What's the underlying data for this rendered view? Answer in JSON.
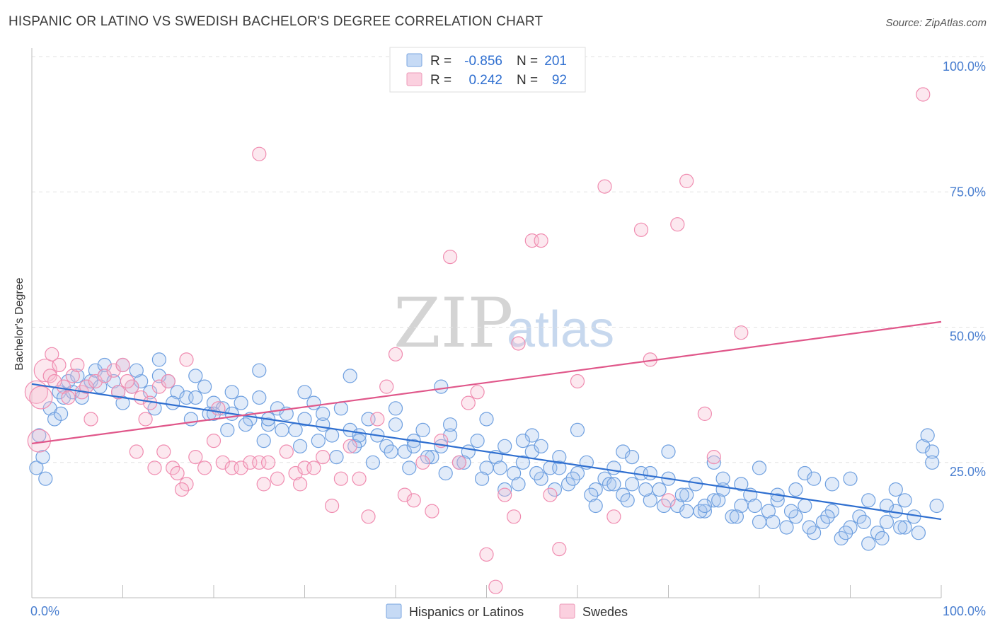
{
  "header": {
    "title": "HISPANIC OR LATINO VS SWEDISH BACHELOR'S DEGREE CORRELATION CHART",
    "source": "Source: ZipAtlas.com"
  },
  "watermark": {
    "zip": "ZIP",
    "atlas": "atlas"
  },
  "legend_stats": [
    {
      "r_label": "R =",
      "r_value": "-0.856",
      "n_label": "N =",
      "n_value": "201",
      "color": "#6fa0e0"
    },
    {
      "r_label": "R =",
      "r_value": "0.242",
      "n_label": "N =",
      "n_value": "92",
      "color": "#f08cb0"
    }
  ],
  "chart_data": {
    "type": "scatter",
    "title": "HISPANIC OR LATINO VS SWEDISH BACHELOR'S DEGREE CORRELATION CHART",
    "xlabel": "",
    "ylabel": "Bachelor's Degree",
    "xlim": [
      0,
      100
    ],
    "ylim": [
      0,
      100
    ],
    "x_tick_labels": [
      "0.0%",
      "100.0%"
    ],
    "y_tick_labels": [
      "25.0%",
      "50.0%",
      "75.0%",
      "100.0%"
    ],
    "y_ticks": [
      25,
      50,
      75,
      100
    ],
    "grid": true,
    "legend_position": "bottom-center",
    "series": [
      {
        "name": "Hispanics or Latinos",
        "color": "#6fa0e0",
        "line_color": "#2f6fd0",
        "r": -0.856,
        "n": 201,
        "trend": [
          [
            0,
            39.5
          ],
          [
            100,
            14.5
          ]
        ],
        "points": [
          [
            0.5,
            24
          ],
          [
            0.8,
            30
          ],
          [
            1.2,
            26
          ],
          [
            2,
            35
          ],
          [
            2.5,
            33
          ],
          [
            3,
            38
          ],
          [
            3.5,
            37
          ],
          [
            4,
            40
          ],
          [
            4.5,
            38
          ],
          [
            5,
            41
          ],
          [
            6,
            39
          ],
          [
            6.5,
            40
          ],
          [
            7,
            42
          ],
          [
            8,
            41
          ],
          [
            9,
            40
          ],
          [
            10,
            43
          ],
          [
            11,
            39
          ],
          [
            12,
            40
          ],
          [
            13,
            38
          ],
          [
            14,
            44
          ],
          [
            15,
            40
          ],
          [
            16,
            38
          ],
          [
            17,
            37
          ],
          [
            18,
            41
          ],
          [
            19,
            39
          ],
          [
            20,
            36
          ],
          [
            21,
            35
          ],
          [
            22,
            34
          ],
          [
            23,
            36
          ],
          [
            24,
            33
          ],
          [
            25,
            37
          ],
          [
            26,
            32
          ],
          [
            27,
            35
          ],
          [
            28,
            34
          ],
          [
            29,
            31
          ],
          [
            30,
            33
          ],
          [
            31,
            36
          ],
          [
            32,
            32
          ],
          [
            33,
            30
          ],
          [
            34,
            35
          ],
          [
            35,
            31
          ],
          [
            36,
            29
          ],
          [
            37,
            33
          ],
          [
            38,
            30
          ],
          [
            39,
            28
          ],
          [
            40,
            32
          ],
          [
            41,
            27
          ],
          [
            42,
            29
          ],
          [
            43,
            31
          ],
          [
            44,
            26
          ],
          [
            45,
            28
          ],
          [
            46,
            30
          ],
          [
            47,
            25
          ],
          [
            48,
            27
          ],
          [
            49,
            29
          ],
          [
            50,
            24
          ],
          [
            51,
            26
          ],
          [
            52,
            28
          ],
          [
            53,
            23
          ],
          [
            54,
            25
          ],
          [
            55,
            27
          ],
          [
            56,
            22
          ],
          [
            57,
            24
          ],
          [
            58,
            26
          ],
          [
            59,
            21
          ],
          [
            60,
            23
          ],
          [
            61,
            25
          ],
          [
            62,
            20
          ],
          [
            63,
            22
          ],
          [
            64,
            24
          ],
          [
            65,
            19
          ],
          [
            66,
            21
          ],
          [
            67,
            23
          ],
          [
            68,
            18
          ],
          [
            69,
            20
          ],
          [
            70,
            22
          ],
          [
            71,
            17
          ],
          [
            72,
            19
          ],
          [
            73,
            21
          ],
          [
            74,
            16
          ],
          [
            75,
            18
          ],
          [
            76,
            20
          ],
          [
            77,
            15
          ],
          [
            78,
            17
          ],
          [
            79,
            19
          ],
          [
            80,
            14
          ],
          [
            81,
            16
          ],
          [
            82,
            18
          ],
          [
            83,
            13
          ],
          [
            84,
            15
          ],
          [
            85,
            17
          ],
          [
            86,
            12
          ],
          [
            87,
            14
          ],
          [
            88,
            16
          ],
          [
            89,
            11
          ],
          [
            90,
            13
          ],
          [
            91,
            15
          ],
          [
            92,
            10
          ],
          [
            93,
            12
          ],
          [
            94,
            14
          ],
          [
            95,
            16
          ],
          [
            96,
            13
          ],
          [
            97,
            15
          ],
          [
            98,
            28
          ],
          [
            99,
            27
          ],
          [
            99.5,
            17
          ],
          [
            1.5,
            22
          ],
          [
            3.2,
            34
          ],
          [
            5.5,
            37
          ],
          [
            7.5,
            39
          ],
          [
            9.5,
            38
          ],
          [
            11.5,
            42
          ],
          [
            13.5,
            35
          ],
          [
            15.5,
            36
          ],
          [
            17.5,
            33
          ],
          [
            19.5,
            34
          ],
          [
            21.5,
            31
          ],
          [
            23.5,
            32
          ],
          [
            25.5,
            29
          ],
          [
            27.5,
            31
          ],
          [
            29.5,
            28
          ],
          [
            31.5,
            29
          ],
          [
            33.5,
            26
          ],
          [
            35.5,
            28
          ],
          [
            37.5,
            25
          ],
          [
            39.5,
            27
          ],
          [
            41.5,
            24
          ],
          [
            43.5,
            26
          ],
          [
            45.5,
            23
          ],
          [
            47.5,
            25
          ],
          [
            49.5,
            22
          ],
          [
            51.5,
            24
          ],
          [
            53.5,
            21
          ],
          [
            55.5,
            23
          ],
          [
            57.5,
            20
          ],
          [
            59.5,
            22
          ],
          [
            61.5,
            19
          ],
          [
            63.5,
            21
          ],
          [
            65.5,
            18
          ],
          [
            67.5,
            20
          ],
          [
            69.5,
            17
          ],
          [
            71.5,
            19
          ],
          [
            73.5,
            16
          ],
          [
            75.5,
            18
          ],
          [
            77.5,
            15
          ],
          [
            79.5,
            17
          ],
          [
            81.5,
            14
          ],
          [
            83.5,
            16
          ],
          [
            85.5,
            13
          ],
          [
            87.5,
            15
          ],
          [
            89.5,
            12
          ],
          [
            91.5,
            14
          ],
          [
            93.5,
            11
          ],
          [
            95.5,
            13
          ],
          [
            97.5,
            12
          ],
          [
            98.5,
            30
          ],
          [
            60,
            31
          ],
          [
            70,
            27
          ],
          [
            80,
            24
          ],
          [
            90,
            22
          ],
          [
            30,
            38
          ],
          [
            40,
            35
          ],
          [
            50,
            33
          ],
          [
            25,
            42
          ],
          [
            35,
            41
          ],
          [
            45,
            39
          ],
          [
            55,
            30
          ],
          [
            65,
            27
          ],
          [
            75,
            25
          ],
          [
            85,
            23
          ],
          [
            95,
            20
          ],
          [
            52,
            20
          ],
          [
            62,
            17
          ],
          [
            72,
            16
          ],
          [
            82,
            19
          ],
          [
            92,
            18
          ],
          [
            10,
            36
          ],
          [
            20,
            34
          ],
          [
            8,
            43
          ],
          [
            14,
            41
          ],
          [
            18,
            37
          ],
          [
            22,
            38
          ],
          [
            26,
            33
          ],
          [
            32,
            34
          ],
          [
            36,
            30
          ],
          [
            42,
            28
          ],
          [
            46,
            32
          ],
          [
            54,
            29
          ],
          [
            58,
            24
          ],
          [
            64,
            21
          ],
          [
            68,
            23
          ],
          [
            74,
            17
          ],
          [
            78,
            21
          ],
          [
            84,
            20
          ],
          [
            88,
            21
          ],
          [
            94,
            17
          ],
          [
            96,
            18
          ],
          [
            99,
            25
          ],
          [
            86,
            22
          ],
          [
            76,
            22
          ],
          [
            66,
            26
          ],
          [
            56,
            28
          ]
        ]
      },
      {
        "name": "Swedes",
        "color": "#f08cb0",
        "line_color": "#e0578a",
        "r": 0.242,
        "n": 92,
        "trend": [
          [
            0,
            28.5
          ],
          [
            100,
            51
          ]
        ],
        "points": [
          [
            0.5,
            38
          ],
          [
            0.8,
            29
          ],
          [
            1.5,
            42
          ],
          [
            2,
            41
          ],
          [
            2.5,
            40
          ],
          [
            3,
            43
          ],
          [
            3.5,
            39
          ],
          [
            4,
            37
          ],
          [
            4.5,
            41
          ],
          [
            5,
            43
          ],
          [
            5.5,
            38
          ],
          [
            6,
            39
          ],
          [
            7,
            40
          ],
          [
            8,
            41
          ],
          [
            9,
            42
          ],
          [
            10,
            43
          ],
          [
            11,
            39
          ],
          [
            12,
            37
          ],
          [
            13,
            36
          ],
          [
            14,
            39
          ],
          [
            15,
            40
          ],
          [
            9.5,
            38
          ],
          [
            10.5,
            40
          ],
          [
            11.5,
            27
          ],
          [
            12.5,
            33
          ],
          [
            13.5,
            24
          ],
          [
            14.5,
            27
          ],
          [
            15.5,
            24
          ],
          [
            16,
            23
          ],
          [
            17,
            21
          ],
          [
            18,
            26
          ],
          [
            19,
            24
          ],
          [
            20,
            29
          ],
          [
            20.5,
            35
          ],
          [
            21,
            25
          ],
          [
            22,
            24
          ],
          [
            23,
            24
          ],
          [
            24,
            25
          ],
          [
            25,
            25
          ],
          [
            25.5,
            21
          ],
          [
            26,
            25
          ],
          [
            27,
            22
          ],
          [
            28,
            27
          ],
          [
            29,
            23
          ],
          [
            29.5,
            21
          ],
          [
            30,
            24
          ],
          [
            31,
            24
          ],
          [
            32,
            26
          ],
          [
            33,
            17
          ],
          [
            34,
            22
          ],
          [
            35,
            28
          ],
          [
            36,
            22
          ],
          [
            37,
            15
          ],
          [
            38,
            33
          ],
          [
            39,
            39
          ],
          [
            40,
            45
          ],
          [
            41,
            19
          ],
          [
            42,
            18
          ],
          [
            43,
            25
          ],
          [
            44,
            16
          ],
          [
            45,
            29
          ],
          [
            46,
            63
          ],
          [
            47,
            25
          ],
          [
            48,
            36
          ],
          [
            49,
            38
          ],
          [
            50,
            8
          ],
          [
            51,
            2
          ],
          [
            52,
            19
          ],
          [
            53,
            15
          ],
          [
            53.5,
            47
          ],
          [
            55,
            66
          ],
          [
            56,
            66
          ],
          [
            57,
            19
          ],
          [
            58,
            9
          ],
          [
            60,
            40
          ],
          [
            63,
            76
          ],
          [
            64,
            15
          ],
          [
            67,
            68
          ],
          [
            68,
            44
          ],
          [
            70,
            18
          ],
          [
            71,
            69
          ],
          [
            72,
            77
          ],
          [
            74,
            34
          ],
          [
            75,
            26
          ],
          [
            78,
            49
          ],
          [
            98,
            93
          ],
          [
            1,
            37
          ],
          [
            2.2,
            45
          ],
          [
            6.5,
            33
          ],
          [
            16.5,
            20
          ],
          [
            25,
            82
          ],
          [
            17,
            44
          ]
        ]
      }
    ]
  }
}
